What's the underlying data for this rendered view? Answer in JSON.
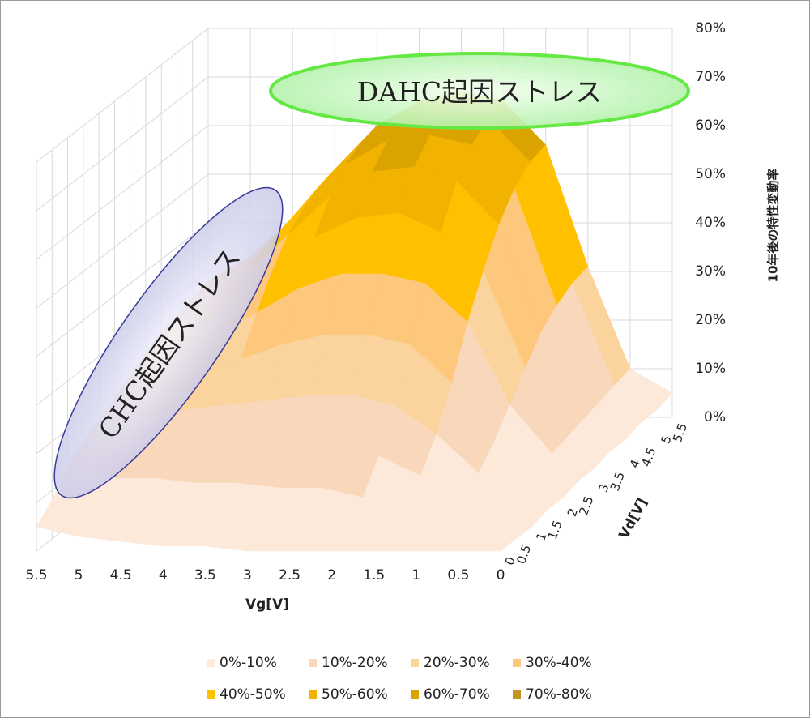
{
  "chart_data": {
    "type": "surface",
    "x_label": "Vg[V]",
    "y_label": "Vd[V]",
    "z_label": "10年後の特性変動率",
    "x": [
      0,
      0.5,
      1,
      1.5,
      2,
      2.5,
      3,
      3.5,
      4,
      4.5,
      5,
      5.5
    ],
    "y": [
      0,
      0.5,
      1,
      1.5,
      2,
      2.5,
      3,
      3.5,
      4,
      4.5,
      5,
      5.5
    ],
    "values": [
      [
        0,
        0,
        0,
        0,
        0,
        0,
        0,
        1,
        1,
        2,
        3,
        5
      ],
      [
        0,
        0,
        0,
        1,
        2,
        3,
        3,
        4,
        4,
        5,
        6,
        8
      ],
      [
        0,
        1,
        2,
        4,
        6,
        8,
        8,
        9,
        9,
        10,
        10,
        12
      ],
      [
        1,
        2,
        4,
        8,
        12,
        15,
        15,
        15,
        15,
        15,
        14,
        15
      ],
      [
        1,
        3,
        6,
        14,
        20,
        22,
        22,
        21,
        20,
        19,
        17,
        17
      ],
      [
        2,
        4,
        10,
        22,
        30,
        32,
        32,
        30,
        27,
        24,
        20,
        19
      ],
      [
        2,
        5,
        15,
        32,
        40,
        42,
        42,
        39,
        34,
        29,
        24,
        21
      ],
      [
        3,
        6,
        20,
        40,
        48,
        52,
        51,
        47,
        40,
        33,
        27,
        23
      ],
      [
        3,
        7,
        25,
        47,
        56,
        59,
        58,
        53,
        45,
        37,
        29,
        25
      ],
      [
        4,
        8,
        28,
        52,
        61,
        63,
        62,
        57,
        48,
        39,
        31,
        26
      ],
      [
        4,
        9,
        30,
        55,
        64,
        66,
        64,
        59,
        50,
        40,
        32,
        27
      ],
      [
        5,
        10,
        31,
        56,
        65,
        67,
        65,
        60,
        51,
        41,
        33,
        28
      ]
    ],
    "zlim": [
      0,
      80
    ],
    "zticks": [
      {
        "value": 0,
        "label": "0%"
      },
      {
        "value": 10,
        "label": "10%"
      },
      {
        "value": 20,
        "label": "20%"
      },
      {
        "value": 30,
        "label": "30%"
      },
      {
        "value": 40,
        "label": "40%"
      },
      {
        "value": 50,
        "label": "50%"
      },
      {
        "value": 60,
        "label": "60%"
      },
      {
        "value": 70,
        "label": "70%"
      },
      {
        "value": 80,
        "label": "80%"
      }
    ],
    "series": [
      {
        "name": "0%-10%",
        "color": "#fde9da"
      },
      {
        "name": "10%-20%",
        "color": "#f9d7ba"
      },
      {
        "name": "20%-30%",
        "color": "#fbd39c"
      },
      {
        "name": "30%-40%",
        "color": "#fdc77c"
      },
      {
        "name": "40%-50%",
        "color": "#ffc000"
      },
      {
        "name": "50%-60%",
        "color": "#f2b200"
      },
      {
        "name": "60%-70%",
        "color": "#dba300"
      },
      {
        "name": "70%-80%",
        "color": "#c39525"
      }
    ],
    "annotations": [
      "DAHC起因ストレス",
      "CHC起因ストレス"
    ]
  }
}
